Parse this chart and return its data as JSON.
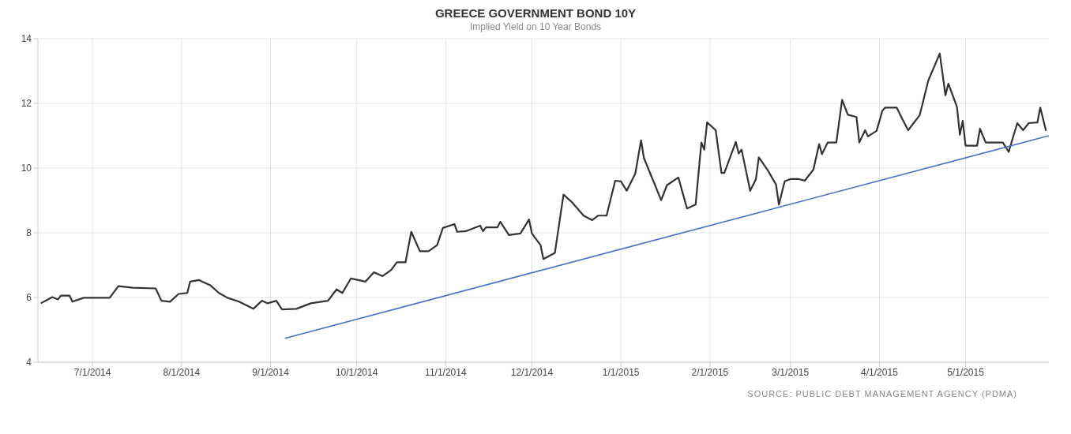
{
  "chart_data": {
    "type": "line",
    "title": "GREECE GOVERNMENT BOND 10Y",
    "subtitle": "Implied Yield on 10 Year Bonds",
    "annotations": [
      "SOURCE: PUBLIC DEBT MANAGEMENT AGENCY (PDMA)"
    ],
    "xlim": [
      "2014-06-12",
      "2015-05-30"
    ],
    "xticks": [
      {
        "value": "2014-07-01",
        "label": "7/1/2014"
      },
      {
        "value": "2014-08-01",
        "label": "8/1/2014"
      },
      {
        "value": "2014-09-01",
        "label": "9/1/2014"
      },
      {
        "value": "2014-10-01",
        "label": "10/1/2014"
      },
      {
        "value": "2014-11-01",
        "label": "11/1/2014"
      },
      {
        "value": "2014-12-01",
        "label": "12/1/2014"
      },
      {
        "value": "2015-01-01",
        "label": "1/1/2015"
      },
      {
        "value": "2015-02-01",
        "label": "2/1/2015"
      },
      {
        "value": "2015-03-01",
        "label": "3/1/2015"
      },
      {
        "value": "2015-04-01",
        "label": "4/1/2015"
      },
      {
        "value": "2015-05-01",
        "label": "5/1/2015"
      }
    ],
    "ylim": [
      4,
      14
    ],
    "yticks": [
      4,
      6,
      8,
      10,
      12,
      14
    ],
    "grid": true,
    "marker": "none",
    "line_style": "solid",
    "series": [
      {
        "color": "#333333",
        "x": [
          "2014-06-13",
          "2014-06-17",
          "2014-06-19",
          "2014-06-20",
          "2014-06-23",
          "2014-06-24",
          "2014-06-28",
          "2014-07-07",
          "2014-07-10",
          "2014-07-15",
          "2014-07-23",
          "2014-07-25",
          "2014-07-28",
          "2014-07-31",
          "2014-08-03",
          "2014-08-04",
          "2014-08-07",
          "2014-08-11",
          "2014-08-14",
          "2014-08-17",
          "2014-08-21",
          "2014-08-26",
          "2014-08-29",
          "2014-08-31",
          "2014-09-03",
          "2014-09-05",
          "2014-09-10",
          "2014-09-15",
          "2014-09-21",
          "2014-09-24",
          "2014-09-26",
          "2014-09-29",
          "2014-10-04",
          "2014-10-07",
          "2014-10-10",
          "2014-10-13",
          "2014-10-15",
          "2014-10-18",
          "2014-10-20",
          "2014-10-23",
          "2014-10-26",
          "2014-10-29",
          "2014-10-31",
          "2014-11-04",
          "2014-11-05",
          "2014-11-08",
          "2014-11-13",
          "2014-11-14",
          "2014-11-15",
          "2014-11-19",
          "2014-11-20",
          "2014-11-23",
          "2014-11-27",
          "2014-11-30",
          "2014-12-01",
          "2014-12-04",
          "2014-12-05",
          "2014-12-09",
          "2014-12-12",
          "2014-12-15",
          "2014-12-19",
          "2014-12-22",
          "2014-12-24",
          "2014-12-27",
          "2014-12-30",
          "2015-01-01",
          "2015-01-03",
          "2015-01-06",
          "2015-01-08",
          "2015-01-09",
          "2015-01-15",
          "2015-01-17",
          "2015-01-21",
          "2015-01-24",
          "2015-01-27",
          "2015-01-29",
          "2015-01-30",
          "2015-01-31",
          "2015-02-03",
          "2015-02-05",
          "2015-02-06",
          "2015-02-10",
          "2015-02-11",
          "2015-02-12",
          "2015-02-15",
          "2015-02-17",
          "2015-02-18",
          "2015-02-21",
          "2015-02-24",
          "2015-02-25",
          "2015-02-27",
          "2015-03-01",
          "2015-03-04",
          "2015-03-06",
          "2015-03-09",
          "2015-03-11",
          "2015-03-12",
          "2015-03-14",
          "2015-03-17",
          "2015-03-19",
          "2015-03-21",
          "2015-03-24",
          "2015-03-25",
          "2015-03-27",
          "2015-03-28",
          "2015-03-31",
          "2015-04-02",
          "2015-04-03",
          "2015-04-07",
          "2015-04-09",
          "2015-04-11",
          "2015-04-15",
          "2015-04-18",
          "2015-04-22",
          "2015-04-24",
          "2015-04-25",
          "2015-04-28",
          "2015-04-29",
          "2015-04-30",
          "2015-05-01",
          "2015-05-05",
          "2015-05-06",
          "2015-05-08",
          "2015-05-14",
          "2015-05-16",
          "2015-05-19",
          "2015-05-21",
          "2015-05-23",
          "2015-05-26",
          "2015-05-27",
          "2015-05-29"
        ],
        "values": [
          5.82,
          6.01,
          5.94,
          6.06,
          6.06,
          5.87,
          5.99,
          5.99,
          6.35,
          6.3,
          6.28,
          5.9,
          5.87,
          6.11,
          6.14,
          6.49,
          6.54,
          6.38,
          6.14,
          5.99,
          5.87,
          5.65,
          5.9,
          5.82,
          5.9,
          5.63,
          5.65,
          5.82,
          5.9,
          6.25,
          6.14,
          6.59,
          6.49,
          6.78,
          6.66,
          6.85,
          7.09,
          7.09,
          8.03,
          7.43,
          7.43,
          7.62,
          8.15,
          8.27,
          8.03,
          8.05,
          8.22,
          8.05,
          8.17,
          8.17,
          8.34,
          7.93,
          7.98,
          8.41,
          7.98,
          7.62,
          7.19,
          7.38,
          9.18,
          8.94,
          8.53,
          8.39,
          8.53,
          8.53,
          9.61,
          9.59,
          9.3,
          9.83,
          10.86,
          10.31,
          9.01,
          9.47,
          9.71,
          8.75,
          8.87,
          10.79,
          10.57,
          11.41,
          11.17,
          9.85,
          9.85,
          10.81,
          10.45,
          10.57,
          9.3,
          9.66,
          10.33,
          9.95,
          9.49,
          8.87,
          9.59,
          9.66,
          9.66,
          9.61,
          9.95,
          10.74,
          10.43,
          10.79,
          10.79,
          12.11,
          11.65,
          11.58,
          10.79,
          11.17,
          10.98,
          11.15,
          11.77,
          11.87,
          11.87,
          11.51,
          11.17,
          11.63,
          12.7,
          13.54,
          12.25,
          12.61,
          11.89,
          11.03,
          11.46,
          10.69,
          10.69,
          11.22,
          10.79,
          10.79,
          10.5,
          11.39,
          11.17,
          11.39,
          11.41,
          11.87,
          11.15
        ]
      },
      {
        "type": "line",
        "color": "#4472c4",
        "x": [
          "2014-09-06",
          "2015-05-30"
        ],
        "values": [
          4.74,
          11.0
        ]
      }
    ]
  }
}
